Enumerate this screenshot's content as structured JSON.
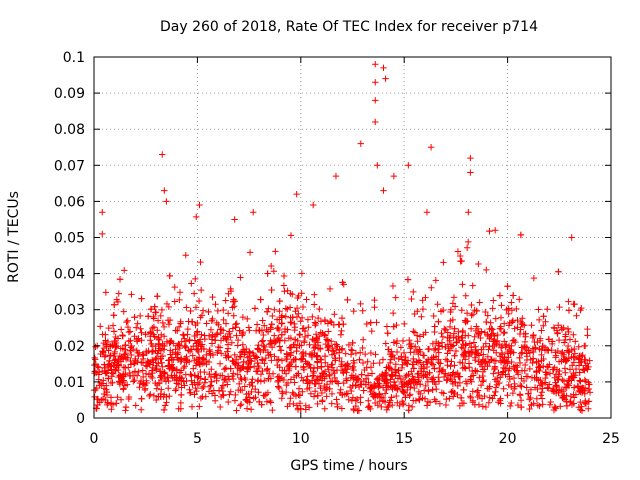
{
  "chart_data": {
    "type": "scatter",
    "title": "Day 260 of 2018, Rate Of TEC Index for receiver p714",
    "xlabel": "GPS time / hours",
    "ylabel": "ROTI / TECUs",
    "xlim": [
      0,
      25
    ],
    "ylim": [
      0,
      0.1
    ],
    "x_ticks": [
      0,
      5,
      10,
      15,
      20,
      25
    ],
    "y_ticks": [
      0,
      0.01,
      0.02,
      0.03,
      0.04,
      0.05,
      0.06,
      0.07,
      0.08,
      0.09,
      0.1
    ],
    "x_tick_labels": [
      "0",
      "5",
      "10",
      "15",
      "20",
      "25"
    ],
    "y_tick_labels": [
      "0",
      "0.01",
      "0.02",
      "0.03",
      "0.04",
      "0.05",
      "0.06",
      "0.07",
      "0.08",
      "0.09",
      "0.1"
    ],
    "grid": true,
    "marker": "+",
    "marker_color": "#ff0000",
    "data_x_range": [
      0,
      24
    ],
    "series": [
      {
        "name": "ROTI",
        "description": "dense cloud of ROTI samples mostly 0.003-0.03 TECU; notable spikes listed below",
        "outliers": [
          {
            "x": 0.4,
            "y": 0.057
          },
          {
            "x": 0.4,
            "y": 0.051
          },
          {
            "x": 3.3,
            "y": 0.073
          },
          {
            "x": 3.4,
            "y": 0.063
          },
          {
            "x": 3.5,
            "y": 0.06
          },
          {
            "x": 5.1,
            "y": 0.059
          },
          {
            "x": 6.8,
            "y": 0.055
          },
          {
            "x": 7.7,
            "y": 0.057
          },
          {
            "x": 9.8,
            "y": 0.062
          },
          {
            "x": 10.6,
            "y": 0.059
          },
          {
            "x": 11.7,
            "y": 0.067
          },
          {
            "x": 12.9,
            "y": 0.076
          },
          {
            "x": 13.6,
            "y": 0.098
          },
          {
            "x": 13.6,
            "y": 0.093
          },
          {
            "x": 13.6,
            "y": 0.088
          },
          {
            "x": 13.6,
            "y": 0.082
          },
          {
            "x": 14.0,
            "y": 0.097
          },
          {
            "x": 14.1,
            "y": 0.094
          },
          {
            "x": 13.7,
            "y": 0.07
          },
          {
            "x": 14.0,
            "y": 0.063
          },
          {
            "x": 14.5,
            "y": 0.067
          },
          {
            "x": 15.2,
            "y": 0.07
          },
          {
            "x": 16.1,
            "y": 0.057
          },
          {
            "x": 16.3,
            "y": 0.075
          },
          {
            "x": 18.2,
            "y": 0.072
          },
          {
            "x": 18.2,
            "y": 0.068
          },
          {
            "x": 18.1,
            "y": 0.057
          },
          {
            "x": 19.4,
            "y": 0.052
          },
          {
            "x": 23.1,
            "y": 0.05
          }
        ]
      }
    ]
  }
}
